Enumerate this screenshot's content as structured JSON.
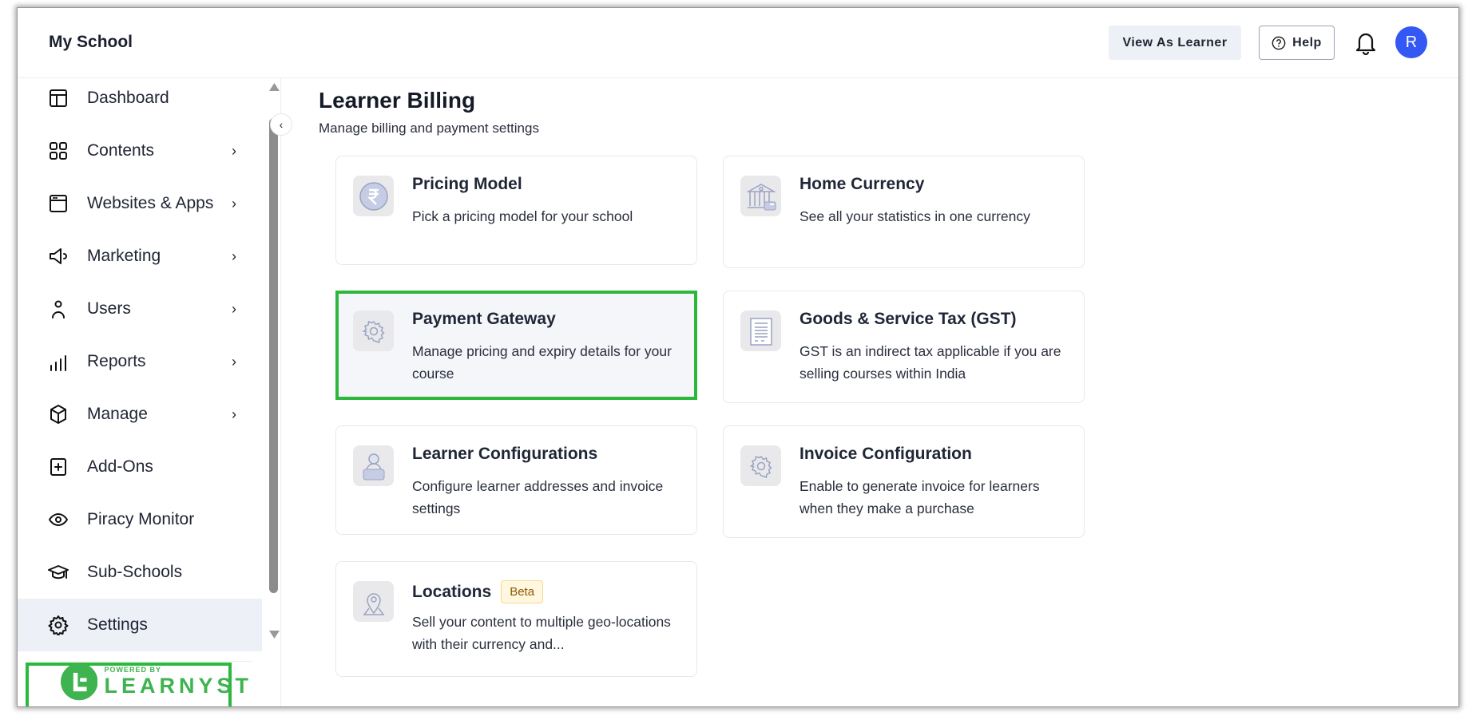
{
  "header": {
    "school_name": "My School",
    "view_as_learner": "View As Learner",
    "help": "Help",
    "avatar_initial": "R"
  },
  "sidebar": {
    "items": [
      {
        "label": "Dashboard",
        "icon": "layout-icon",
        "chevron": false
      },
      {
        "label": "Contents",
        "icon": "grid-icon",
        "chevron": true
      },
      {
        "label": "Websites & Apps",
        "icon": "browser-icon",
        "chevron": true
      },
      {
        "label": "Marketing",
        "icon": "megaphone-icon",
        "chevron": true
      },
      {
        "label": "Users",
        "icon": "user-icon",
        "chevron": true
      },
      {
        "label": "Reports",
        "icon": "bar-chart-icon",
        "chevron": true
      },
      {
        "label": "Manage",
        "icon": "cube-icon",
        "chevron": true
      },
      {
        "label": "Add-Ons",
        "icon": "plus-square-icon",
        "chevron": false
      },
      {
        "label": "Piracy Monitor",
        "icon": "eye-icon",
        "chevron": false
      },
      {
        "label": "Sub-Schools",
        "icon": "graduation-cap-icon",
        "chevron": false
      },
      {
        "label": "Settings",
        "icon": "gear-icon",
        "chevron": false,
        "active": true
      }
    ],
    "chevron": "›",
    "logo": {
      "powered_by": "POWERED BY",
      "brand": "LEARNYST"
    }
  },
  "main": {
    "title": "Learner Billing",
    "subtitle": "Manage billing and payment settings",
    "cards": [
      {
        "title": "Pricing Model",
        "desc": "Pick a pricing model for your school",
        "icon": "rupee-icon"
      },
      {
        "title": "Home Currency",
        "desc": "See all your statistics in one currency",
        "icon": "bank-icon"
      },
      {
        "title": "Payment Gateway",
        "desc": "Manage pricing and expiry details for your course",
        "icon": "gear-icon",
        "selected": true
      },
      {
        "title": "Goods & Service Tax (GST)",
        "desc": "GST is an indirect tax applicable if you are selling courses within India",
        "icon": "document-icon"
      },
      {
        "title": "Learner Configurations",
        "desc": "Configure learner addresses and invoice settings",
        "icon": "learner-icon"
      },
      {
        "title": "Invoice Configuration",
        "desc": "Enable to generate invoice for learners when they make a purchase",
        "icon": "gear-icon"
      },
      {
        "title": "Locations",
        "badge": "Beta",
        "desc": "Sell your content to multiple geo-locations with their currency and...",
        "icon": "map-pin-icon"
      }
    ]
  },
  "colors": {
    "accent": "#3358f4",
    "highlight": "#2db83d",
    "brand": "#3fb34f"
  }
}
